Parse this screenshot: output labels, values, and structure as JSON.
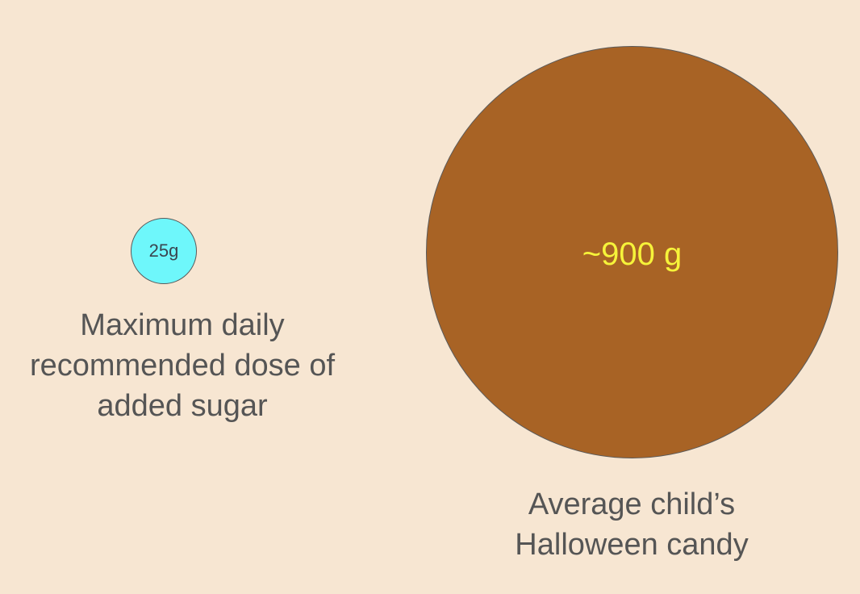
{
  "small_item": {
    "value_label": "25g",
    "caption": "Maximum daily\nrecommended dose of\nadded sugar",
    "fill_color": "#6ef7fb"
  },
  "big_item": {
    "value_label": "~900 g",
    "caption": "Average child’s\nHalloween candy",
    "fill_color": "#a86325",
    "label_color": "#f6f33a"
  },
  "background_color": "#f7e6d2"
}
